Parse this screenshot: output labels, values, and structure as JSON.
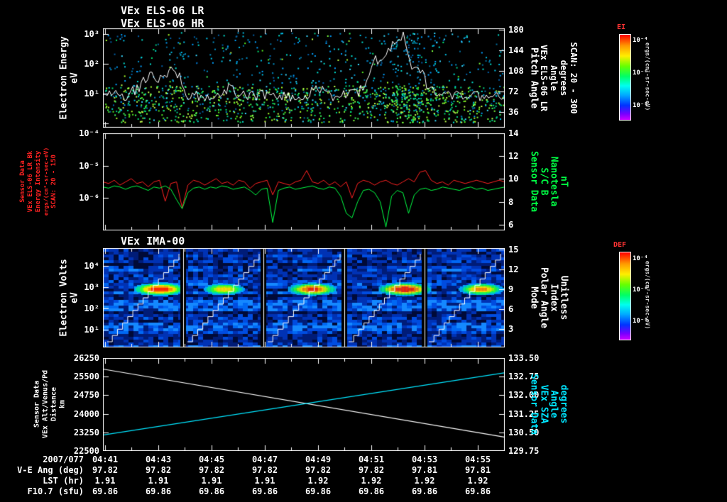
{
  "header": {
    "title_lr": "VEx ELS-06 LR",
    "title_hr": "VEx ELS-06 HR",
    "title_ima": "VEx IMA-00"
  },
  "panel1": {
    "left_labels": [
      "Electron Energy",
      "eV"
    ],
    "yticks": [
      "10³",
      "10²",
      "10¹"
    ],
    "right_ticks": [
      "180",
      "144",
      "108",
      "72",
      "36"
    ],
    "right_labels": [
      "Pitch Angle",
      "VEx ELS-06 LR",
      "Angle",
      "degrees",
      "SCAN: 20 - 300"
    ]
  },
  "panel2": {
    "left_labels": [
      "Sensor Data",
      "VEx ELS-06 LR Bk",
      "Energy Intensity",
      "ergs/(cm²-sr-sec-eV)",
      "SCAN: 20 - 150"
    ],
    "yticks": [
      "10⁻⁴",
      "10⁻⁵",
      "10⁻⁶"
    ],
    "right_ticks": [
      "14",
      "12",
      "10",
      "8",
      "6"
    ],
    "right_labels": [
      "Sensor Data",
      "S/C B",
      "Nanotesla",
      "nT"
    ]
  },
  "panel3": {
    "left_labels": [
      "Electron Volts",
      "eV"
    ],
    "yticks": [
      "10⁴",
      "10³",
      "10²",
      "10¹"
    ],
    "right_ticks": [
      "15",
      "12",
      "9",
      "6",
      "3"
    ],
    "right_labels": [
      "Mode",
      "Polar Angle",
      "Index",
      "Unitless"
    ]
  },
  "panel4": {
    "left_labels": [
      "Sensor Data",
      "VEx Alt/Venus/Pd",
      "Distance",
      "km"
    ],
    "yticks": [
      "26250",
      "25500",
      "24750",
      "24000",
      "23250",
      "22500"
    ],
    "right_ticks": [
      "133.50",
      "132.75",
      "132.00",
      "131.25",
      "130.50",
      "129.75"
    ],
    "right_labels": [
      "Sensor Data",
      "VEx SZA",
      "Angle",
      "degrees"
    ]
  },
  "colorbar1": {
    "label": "EI",
    "ticks": [
      "10⁻⁴",
      "10⁻⁶",
      "10⁻⁸"
    ],
    "unit": "ergs/(cm²-sr-sec-eV)"
  },
  "colorbar2": {
    "label": "DEF",
    "ticks": [
      "10⁻⁴",
      "10⁻⁶",
      "10⁻⁸"
    ],
    "unit": "ergs/(cm²-sr-sec-eV)"
  },
  "xaxis": {
    "date": "2007/077",
    "ticks": [
      "04:41",
      "04:43",
      "04:45",
      "04:47",
      "04:49",
      "04:51",
      "04:53",
      "04:55"
    ]
  },
  "table": {
    "rows": [
      {
        "label": "V-E Ang (deg)",
        "values": [
          "97.82",
          "97.82",
          "97.82",
          "97.82",
          "97.82",
          "97.82",
          "97.81",
          "97.81"
        ]
      },
      {
        "label": "LST (hr)",
        "values": [
          "1.91",
          "1.91",
          "1.91",
          "1.91",
          "1.92",
          "1.92",
          "1.92",
          "1.92"
        ]
      },
      {
        "label": "F10.7 (sfu)",
        "values": [
          "69.86",
          "69.86",
          "69.86",
          "69.86",
          "69.86",
          "69.86",
          "69.86",
          "69.86"
        ]
      }
    ]
  },
  "chart_data": [
    {
      "id": "els_electron_energy_spectrogram",
      "type": "heatmap",
      "title": "VEx ELS-06 LR / VEx ELS-06 HR",
      "xlabel": "UT 2007/077 04:41 - 04:56",
      "ylabel": "Electron Energy (eV)",
      "yscale": "log",
      "ylim": [
        1,
        10000
      ],
      "right_axis": {
        "label": "Pitch Angle VEx ELS-06 LR Angle (degrees) SCAN: 20 - 300",
        "ticks": [
          36,
          72,
          108,
          144,
          180
        ]
      },
      "colorbar": {
        "label": "EI",
        "unit": "ergs/(cm2-sr-sec-eV)",
        "tick_values": [
          0.0001,
          1e-06,
          1e-08
        ]
      },
      "description": "Dense green electron flux band ~3-100 eV with scattered cyan/blue flux up to keV energies; white spacecraft trace overlay with peaks near 04:43 and 04:50-04:52"
    },
    {
      "id": "bk_energy_intensity_vs_b",
      "type": "line",
      "x_start": "04:41",
      "x_end": "04:56",
      "left_axis": {
        "label": "VEx ELS-06 LR Bk Energy Intensity SCAN: 20 - 150",
        "unit": "ergs/(cm2-sr-sec-eV)",
        "scale": "log",
        "lim_log10": [
          -7,
          -4
        ]
      },
      "right_axis": {
        "label": "S/C B",
        "unit": "nT",
        "lim": [
          5.5,
          14
        ]
      },
      "series": [
        {
          "name": "Bk Energy Intensity",
          "color": "#ff2222",
          "axis": "left",
          "values_log10": [
            -5.5,
            -5.55,
            -5.45,
            -5.6,
            -5.5,
            -5.4,
            -5.55,
            -5.5,
            -5.65,
            -5.5,
            -5.45,
            -6.1,
            -5.55,
            -5.5,
            -6.3,
            -5.6,
            -5.45,
            -5.5,
            -5.6,
            -5.5,
            -5.4,
            -5.55,
            -5.5,
            -5.6,
            -5.45,
            -5.5,
            -5.7,
            -5.55,
            -5.5,
            -5.45,
            -5.9,
            -5.5,
            -5.55,
            -5.6,
            -5.5,
            -5.45,
            -5.15,
            -5.5,
            -5.55,
            -5.45,
            -5.6,
            -5.5,
            -5.65,
            -5.5,
            -6.0,
            -5.55,
            -5.45,
            -5.5,
            -5.6,
            -5.5,
            -5.45,
            -5.55,
            -5.6,
            -5.5,
            -5.4,
            -5.5,
            -5.2,
            -5.15,
            -5.45,
            -5.55,
            -5.5,
            -5.6,
            -5.45,
            -5.5,
            -5.55,
            -5.5,
            -5.45,
            -5.5,
            -5.55,
            -5.5,
            -5.45,
            -5.5
          ]
        },
        {
          "name": "S/C B",
          "color": "#00ff44",
          "axis": "right",
          "values": [
            9.3,
            9.2,
            9.4,
            9.3,
            9.1,
            9.3,
            9.4,
            9.2,
            9.0,
            9.3,
            9.2,
            9.4,
            9.1,
            8.2,
            7.4,
            8.8,
            9.2,
            9.3,
            9.1,
            9.3,
            9.2,
            9.4,
            9.3,
            9.1,
            9.2,
            9.3,
            9.0,
            8.6,
            9.1,
            9.2,
            6.2,
            9.0,
            9.2,
            9.3,
            9.1,
            9.2,
            9.3,
            9.4,
            9.2,
            9.1,
            9.3,
            9.2,
            8.5,
            7.0,
            6.6,
            8.0,
            9.0,
            9.1,
            8.8,
            8.0,
            5.8,
            8.5,
            9.0,
            8.8,
            7.0,
            8.6,
            9.1,
            9.2,
            9.0,
            9.1,
            9.3,
            9.2,
            9.1,
            9.0,
            9.2,
            9.3,
            9.1,
            9.2,
            9.0,
            9.1,
            9.2,
            9.3
          ]
        }
      ]
    },
    {
      "id": "ima_ion_spectrogram",
      "type": "heatmap",
      "title": "VEx IMA-00",
      "ylabel": "Electron Volts (eV)",
      "yscale": "log",
      "ylim": [
        1,
        100000
      ],
      "right_axis": {
        "label": "Mode Polar Angle Index (Unitless)",
        "ticks": [
          3,
          6,
          9,
          12,
          15
        ]
      },
      "colorbar": {
        "label": "DEF",
        "unit": "ergs/(cm2-sr-sec-eV)",
        "tick_values": [
          0.0001,
          1e-06,
          1e-08
        ]
      },
      "segment_bounds_frac": [
        0,
        0.2,
        0.4,
        0.6,
        0.8,
        1
      ],
      "ion_beam": {
        "energy_eV": 1000,
        "blobs": [
          {
            "x_frac": 0.14,
            "strength": 0.95
          },
          {
            "x_frac": 0.3,
            "strength": 0.62
          },
          {
            "x_frac": 0.52,
            "strength": 0.85
          },
          {
            "x_frac": 0.75,
            "strength": 1.0
          },
          {
            "x_frac": 0.94,
            "strength": 0.7
          }
        ]
      },
      "overlay": "white polar-angle staircase rising 0 to 15 within each of 5 time segments; blue noisy background"
    },
    {
      "id": "altitude_and_sza",
      "type": "line",
      "left_axis": {
        "label": "VEx Alt/Venus/Pd Distance",
        "unit": "km",
        "lim": [
          22500,
          26250
        ]
      },
      "right_axis": {
        "label": "VEx SZA Angle",
        "unit": "degrees",
        "lim": [
          129.75,
          133.5
        ]
      },
      "series": [
        {
          "name": "Distance",
          "color": "#ffffff",
          "axis": "left",
          "start": 25800,
          "end": 23060
        },
        {
          "name": "SZA",
          "color": "#00e5ff",
          "axis": "right",
          "start": 130.4,
          "end": 132.9
        }
      ]
    }
  ]
}
